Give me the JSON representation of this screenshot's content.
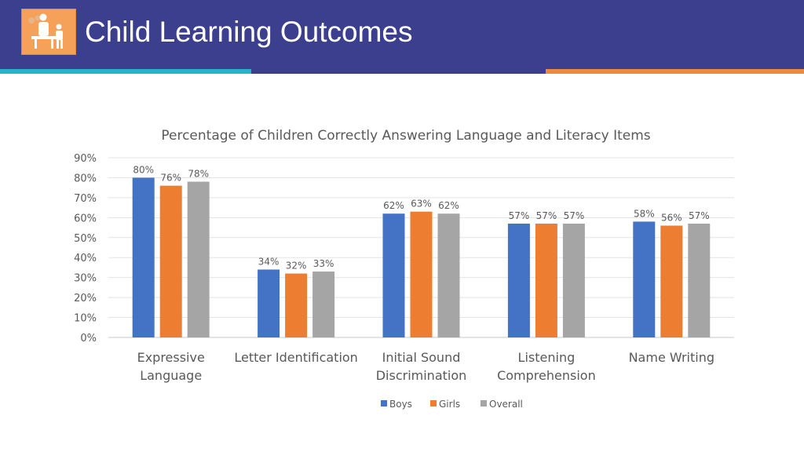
{
  "header": {
    "title": "Child Learning Outcomes",
    "logo_icon": "teacher-and-child-icon",
    "colors": {
      "banner": "#3b3f8e",
      "accent_teal": "#25b6c3",
      "accent_orange": "#f08a3a"
    }
  },
  "chart_data": {
    "type": "bar",
    "title": "Percentage of Children Correctly Answering Language and Literacy Items",
    "xlabel": "",
    "ylabel": "",
    "ylim": [
      0,
      90
    ],
    "yticks": [
      "0%",
      "10%",
      "20%",
      "30%",
      "40%",
      "50%",
      "60%",
      "70%",
      "80%",
      "90%"
    ],
    "categories": [
      [
        "Expressive",
        "Language"
      ],
      [
        "Letter Identification"
      ],
      [
        "Initial Sound",
        "Discrimination"
      ],
      [
        "Listening",
        "Comprehension"
      ],
      [
        "Name Writing"
      ]
    ],
    "series": [
      {
        "name": "Boys",
        "color": "#4472c4",
        "values": [
          80,
          34,
          62,
          57,
          58
        ],
        "labels": [
          "80%",
          "34%",
          "62%",
          "57%",
          "58%"
        ]
      },
      {
        "name": "Girls",
        "color": "#ed7d31",
        "values": [
          76,
          32,
          63,
          57,
          56
        ],
        "labels": [
          "76%",
          "32%",
          "63%",
          "57%",
          "56%"
        ]
      },
      {
        "name": "Overall",
        "color": "#a5a5a5",
        "values": [
          78,
          33,
          62,
          57,
          57
        ],
        "labels": [
          "78%",
          "33%",
          "62%",
          "57%",
          "57%"
        ]
      }
    ],
    "grid": true,
    "legend": "bottom"
  }
}
